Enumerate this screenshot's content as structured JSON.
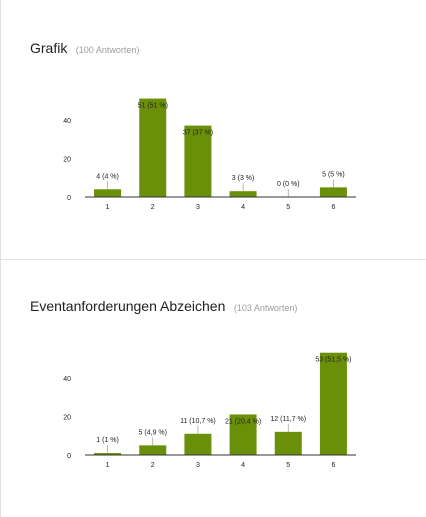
{
  "colors": {
    "bar": "#6a8f09",
    "axis": "#333333",
    "text": "#222222",
    "leader": "#999999"
  },
  "questions": [
    {
      "title": "Grafik",
      "responses": "(100 Antworten)"
    },
    {
      "title": "Eventanforderungen Abzeichen",
      "responses": "(103 Antworten)"
    }
  ],
  "chart_data": [
    {
      "type": "bar",
      "title": "Grafik",
      "categories": [
        "1",
        "2",
        "3",
        "4",
        "5",
        "6"
      ],
      "values": [
        4,
        51,
        37,
        3,
        0,
        5
      ],
      "labels": [
        "4 (4 %)",
        "51 (51 %)",
        "37 (37 %)",
        "3 (3 %)",
        "0 (0 %)",
        "5 (5 %)"
      ],
      "yticks": [
        0,
        20,
        40
      ],
      "ylim": [
        0,
        51
      ],
      "xlabel": "",
      "ylabel": "",
      "grid": false,
      "legend": "none"
    },
    {
      "type": "bar",
      "title": "Eventanforderungen Abzeichen",
      "categories": [
        "1",
        "2",
        "3",
        "4",
        "5",
        "6"
      ],
      "values": [
        1,
        5,
        11,
        21,
        12,
        53
      ],
      "labels": [
        "1 (1 %)",
        "5 (4,9 %)",
        "11 (10,7 %)",
        "21 (20,4 %)",
        "12 (11,7 %)",
        "53 (51,5 %)"
      ],
      "yticks": [
        0,
        20,
        40
      ],
      "ylim": [
        0,
        53
      ],
      "xlabel": "",
      "ylabel": "",
      "grid": false,
      "legend": "none"
    }
  ]
}
